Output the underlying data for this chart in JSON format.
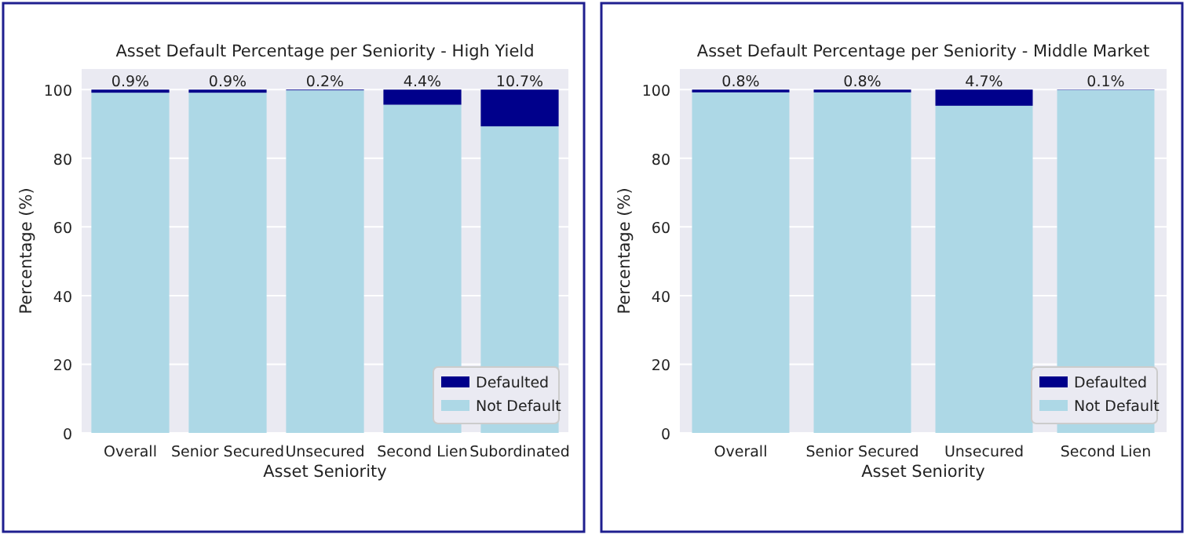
{
  "chart_data": [
    {
      "type": "bar",
      "title": "Asset Default Percentage per Seniority - High Yield",
      "xlabel": "Asset Seniority",
      "ylabel": "Percentage (%)",
      "categories": [
        "Overall",
        "Senior Secured",
        "Unsecured",
        "Second Lien",
        "Subordinated"
      ],
      "stacked": true,
      "series": [
        {
          "name": "Not Default",
          "color": "#add8e6",
          "values": [
            99.1,
            99.1,
            99.8,
            95.6,
            89.3
          ]
        },
        {
          "name": "Defaulted",
          "color": "#00008b",
          "values": [
            0.9,
            0.9,
            0.2,
            4.4,
            10.7
          ],
          "value_labels": [
            "0.9%",
            "0.9%",
            "0.2%",
            "4.4%",
            "10.7%"
          ]
        }
      ],
      "ylim": [
        0,
        106
      ],
      "yticks": [
        0,
        20,
        40,
        60,
        80,
        100
      ],
      "grid": "y",
      "legend": "bottom right"
    },
    {
      "type": "bar",
      "title": "Asset Default Percentage per Seniority - Middle Market",
      "xlabel": "Asset Seniority",
      "ylabel": "Percentage (%)",
      "categories": [
        "Overall",
        "Senior Secured",
        "Unsecured",
        "Second Lien"
      ],
      "stacked": true,
      "series": [
        {
          "name": "Not Default",
          "color": "#add8e6",
          "values": [
            99.2,
            99.2,
            95.3,
            99.9
          ]
        },
        {
          "name": "Defaulted",
          "color": "#00008b",
          "values": [
            0.8,
            0.8,
            4.7,
            0.1
          ],
          "value_labels": [
            "0.8%",
            "0.8%",
            "4.7%",
            "0.1%"
          ]
        }
      ],
      "ylim": [
        0,
        106
      ],
      "yticks": [
        0,
        20,
        40,
        60,
        80,
        100
      ],
      "grid": "y",
      "legend": "bottom right"
    }
  ]
}
